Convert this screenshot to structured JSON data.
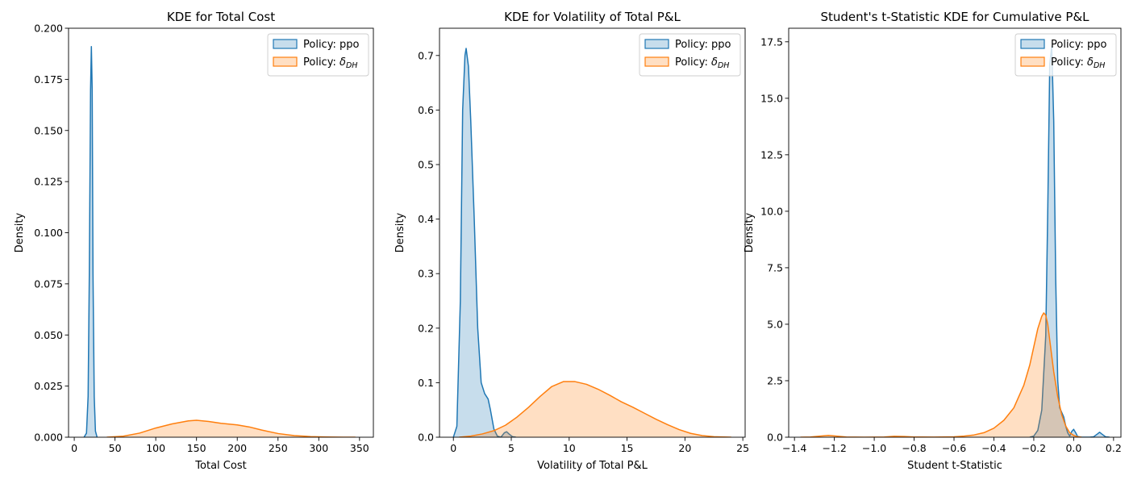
{
  "chart_data": [
    {
      "type": "area",
      "title": "KDE for Total Cost",
      "xlabel": "Total Cost",
      "ylabel": "Density",
      "xlim": [
        -7,
        367
      ],
      "ylim": [
        0,
        0.2
      ],
      "xticks": [
        0,
        50,
        100,
        150,
        200,
        250,
        300,
        350
      ],
      "xtick_labels": [
        "0",
        "50",
        "100",
        "150",
        "200",
        "250",
        "300",
        "350"
      ],
      "yticks": [
        0,
        0.025,
        0.05,
        0.075,
        0.1,
        0.125,
        0.15,
        0.175,
        0.2
      ],
      "ytick_labels": [
        "0.000",
        "0.025",
        "0.050",
        "0.075",
        "0.100",
        "0.125",
        "0.150",
        "0.175",
        "0.200"
      ],
      "legend": {
        "placement": "upper right"
      },
      "grid": false,
      "series": [
        {
          "name": "Policy: ppo",
          "color": "#1f77b4",
          "x": [
            12,
            15,
            17,
            18.5,
            20,
            21,
            22,
            23,
            24.5,
            26,
            28
          ],
          "y": [
            0,
            0.002,
            0.02,
            0.08,
            0.17,
            0.191,
            0.17,
            0.08,
            0.02,
            0.003,
            0
          ]
        },
        {
          "name": "Policy: δ_DH",
          "color": "#ff7f0e",
          "x": [
            40,
            60,
            80,
            100,
            120,
            140,
            150,
            165,
            180,
            200,
            215,
            230,
            250,
            270,
            290,
            310,
            330,
            345
          ],
          "y": [
            0,
            0.0005,
            0.002,
            0.0045,
            0.0065,
            0.008,
            0.0083,
            0.0077,
            0.0068,
            0.006,
            0.005,
            0.0035,
            0.0018,
            0.0008,
            0.0003,
            0.0001,
            2e-05,
            0
          ]
        }
      ]
    },
    {
      "type": "area",
      "title": "KDE for Volatility of Total P&L",
      "xlabel": "Volatility of Total P&L",
      "ylabel": "Density",
      "xlim": [
        -1.2,
        25.2
      ],
      "ylim": [
        0,
        0.75
      ],
      "xticks": [
        0,
        5,
        10,
        15,
        20,
        25
      ],
      "xtick_labels": [
        "0",
        "5",
        "10",
        "15",
        "20",
        "25"
      ],
      "yticks": [
        0,
        0.1,
        0.2,
        0.3,
        0.4,
        0.5,
        0.6,
        0.7
      ],
      "ytick_labels": [
        "0.0",
        "0.1",
        "0.2",
        "0.3",
        "0.4",
        "0.5",
        "0.6",
        "0.7"
      ],
      "legend": {
        "placement": "upper right"
      },
      "grid": false,
      "series": [
        {
          "name": "Policy: ppo",
          "color": "#1f77b4",
          "x": [
            0,
            0.3,
            0.6,
            0.8,
            1.0,
            1.1,
            1.3,
            1.5,
            1.8,
            2.1,
            2.4,
            2.7,
            3.0,
            3.2,
            3.5,
            3.8,
            4.1,
            4.4,
            4.6,
            4.8,
            5.1,
            5.4
          ],
          "y": [
            0,
            0.02,
            0.25,
            0.6,
            0.7,
            0.713,
            0.68,
            0.58,
            0.4,
            0.2,
            0.1,
            0.08,
            0.07,
            0.05,
            0.015,
            0.002,
            0,
            0.008,
            0.01,
            0.006,
            0.001,
            0
          ]
        },
        {
          "name": "Policy: δ_DH",
          "color": "#ff7f0e",
          "x": [
            0.5,
            1.5,
            2.5,
            3.5,
            4.5,
            5.5,
            6.5,
            7.5,
            8.5,
            9.5,
            10.5,
            11.5,
            12.5,
            13.5,
            14.5,
            15.5,
            16.5,
            17.5,
            18.5,
            19.5,
            20.5,
            21.5,
            22.5,
            24
          ],
          "y": [
            0,
            0.002,
            0.006,
            0.012,
            0.022,
            0.037,
            0.055,
            0.075,
            0.093,
            0.102,
            0.102,
            0.097,
            0.088,
            0.077,
            0.065,
            0.055,
            0.044,
            0.033,
            0.023,
            0.014,
            0.007,
            0.003,
            0.001,
            0
          ]
        }
      ]
    },
    {
      "type": "area",
      "title": "Student's t-Statistic KDE for Cumulative P&L",
      "xlabel": "Student t-Statistic",
      "ylabel": "Density",
      "xlim": [
        -1.429,
        0.237
      ],
      "ylim": [
        0,
        18.1
      ],
      "xticks": [
        -1.4,
        -1.2,
        -1.0,
        -0.8,
        -0.6,
        -0.4,
        -0.2,
        0.0,
        0.2
      ],
      "xtick_labels": [
        "−1.4",
        "−1.2",
        "−1.0",
        "−0.8",
        "−0.6",
        "−0.4",
        "−0.2",
        "0.0",
        "0.2"
      ],
      "yticks": [
        0,
        2.5,
        5,
        7.5,
        10,
        12.5,
        15,
        17.5
      ],
      "ytick_labels": [
        "0.0",
        "2.5",
        "5.0",
        "7.5",
        "10.0",
        "12.5",
        "15.0",
        "17.5"
      ],
      "legend": {
        "placement": "upper right"
      },
      "grid": false,
      "series": [
        {
          "name": "Policy: ppo",
          "color": "#1f77b4",
          "x": [
            -0.22,
            -0.2,
            -0.18,
            -0.16,
            -0.14,
            -0.13,
            -0.12,
            -0.11,
            -0.1,
            -0.09,
            -0.08,
            -0.07,
            -0.06,
            -0.05,
            -0.04,
            -0.03,
            -0.02,
            -0.01,
            0.0,
            0.01,
            0.02,
            0.04,
            0.08,
            0.1,
            0.12,
            0.13,
            0.14,
            0.16,
            0.18
          ],
          "y": [
            0,
            0.05,
            0.3,
            1.2,
            4.5,
            10,
            16.5,
            17.3,
            14,
            7,
            2.5,
            1.3,
            1.1,
            0.9,
            0.5,
            0.2,
            0.05,
            0.25,
            0.35,
            0.2,
            0.03,
            0,
            0,
            0.02,
            0.15,
            0.22,
            0.15,
            0.02,
            0
          ]
        },
        {
          "name": "Policy: δ_DH",
          "color": "#ff7f0e",
          "x": [
            -1.37,
            -1.32,
            -1.27,
            -1.23,
            -1.19,
            -1.14,
            -1.05,
            -0.95,
            -0.9,
            -0.85,
            -0.8,
            -0.7,
            -0.6,
            -0.55,
            -0.5,
            -0.45,
            -0.4,
            -0.35,
            -0.3,
            -0.25,
            -0.22,
            -0.2,
            -0.18,
            -0.16,
            -0.15,
            -0.14,
            -0.13,
            -0.12,
            -0.1,
            -0.08,
            -0.06,
            -0.04,
            -0.02,
            0.0,
            0.02,
            0.04
          ],
          "y": [
            0,
            0.01,
            0.05,
            0.08,
            0.05,
            0.01,
            0,
            0.01,
            0.04,
            0.03,
            0.01,
            0.005,
            0.02,
            0.05,
            0.1,
            0.2,
            0.4,
            0.75,
            1.3,
            2.3,
            3.2,
            4.0,
            4.8,
            5.35,
            5.5,
            5.4,
            5.0,
            4.3,
            2.9,
            1.8,
            1.0,
            0.5,
            0.2,
            0.08,
            0.02,
            0
          ]
        }
      ]
    }
  ]
}
